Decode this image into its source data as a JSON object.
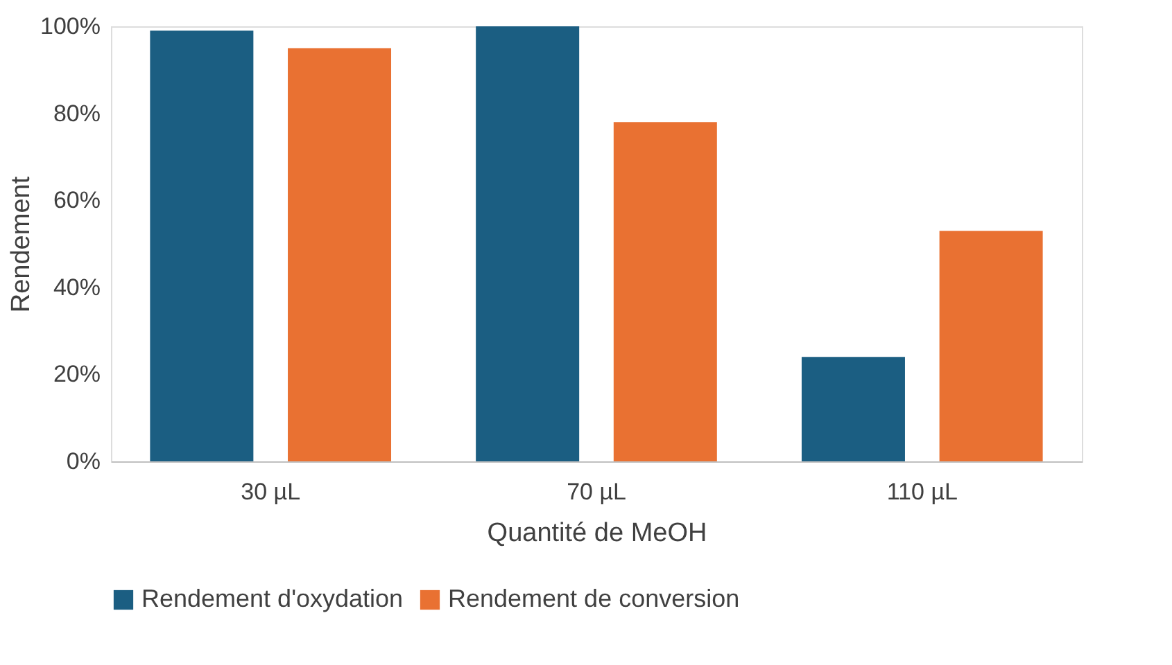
{
  "chart_data": {
    "type": "bar",
    "xlabel": "Quantité de MeOH",
    "ylabel": "Rendement",
    "categories": [
      "30 µL",
      "70 µL",
      "110 µL"
    ],
    "series": [
      {
        "name": "Rendement d'oxydation",
        "color": "#1b5e82",
        "values": [
          99,
          100,
          24
        ]
      },
      {
        "name": "Rendement de conversion",
        "color": "#e97132",
        "values": [
          95,
          78,
          53
        ]
      }
    ],
    "ylim": [
      0,
      100
    ],
    "yticks": [
      {
        "value": 0,
        "label": "0%"
      },
      {
        "value": 20,
        "label": "20%"
      },
      {
        "value": 40,
        "label": "40%"
      },
      {
        "value": 60,
        "label": "60%"
      },
      {
        "value": 80,
        "label": "80%"
      },
      {
        "value": 100,
        "label": "100%"
      }
    ],
    "grid": false,
    "legend": "bottom"
  }
}
